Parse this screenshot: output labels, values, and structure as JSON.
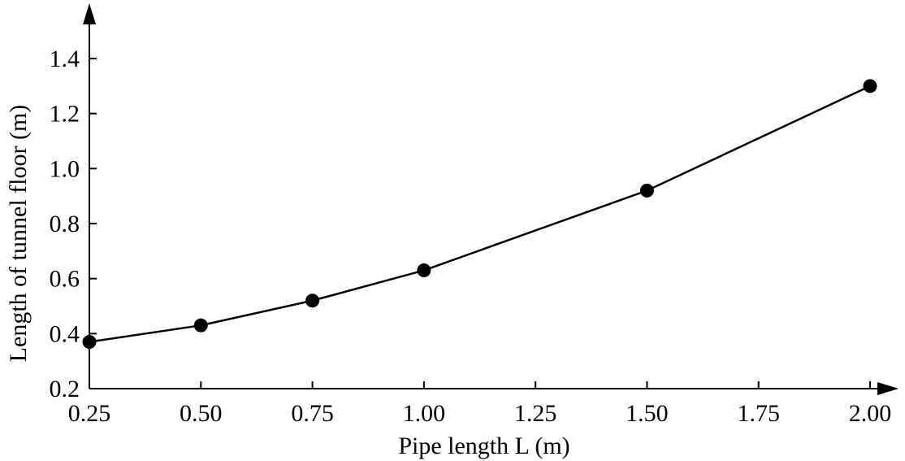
{
  "chart_data": {
    "type": "line",
    "xlabel": "Pipe length L (m)",
    "ylabel": "Length of tunnel floor (m)",
    "x_ticks": [
      "0.25",
      "0.50",
      "0.75",
      "1.00",
      "1.25",
      "1.50",
      "1.75",
      "2.00"
    ],
    "y_ticks": [
      "0.2",
      "0.4",
      "0.6",
      "0.8",
      "1.0",
      "1.2",
      "1.4"
    ],
    "xlim": [
      0.25,
      2.0
    ],
    "ylim": [
      0.2,
      1.4
    ],
    "grid": false,
    "marker": "filled-circle",
    "line_color": "#000000",
    "series": [
      {
        "x": [
          0.25,
          0.5,
          0.75,
          1.0,
          1.5,
          2.0
        ],
        "y": [
          0.37,
          0.43,
          0.52,
          0.63,
          0.92,
          1.3
        ]
      }
    ]
  }
}
